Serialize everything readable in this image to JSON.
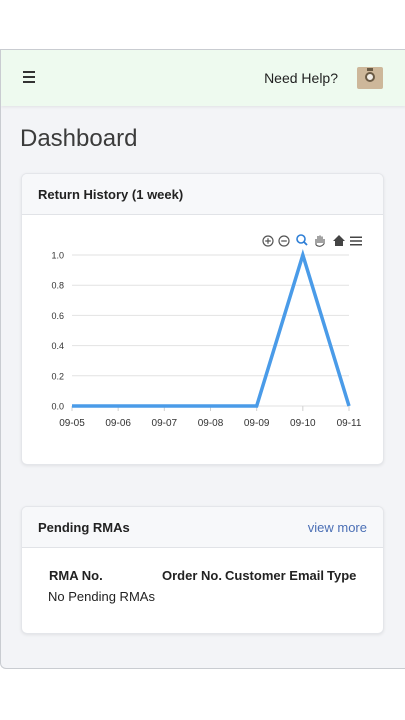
{
  "header": {
    "help_label": "Need Help?"
  },
  "page": {
    "title": "Dashboard"
  },
  "return_history": {
    "title": "Return History (1 week)",
    "toolbar_icons": [
      "zoom-in-icon",
      "zoom-out-icon",
      "zoom-select-icon",
      "pan-icon",
      "home-icon",
      "menu-icon"
    ]
  },
  "chart_data": {
    "type": "line",
    "title": "",
    "xlabel": "",
    "ylabel": "",
    "categories": [
      "09-05",
      "09-06",
      "09-07",
      "09-08",
      "09-09",
      "09-10",
      "09-11"
    ],
    "values": [
      0,
      0,
      0,
      0,
      0,
      1,
      0
    ],
    "ylim": [
      0,
      1
    ],
    "yticks": [
      "0.0",
      "0.2",
      "0.4",
      "0.6",
      "0.8",
      "1.0"
    ],
    "grid": true,
    "line_color": "#4a9be8"
  },
  "pending_rmas": {
    "title": "Pending RMAs",
    "view_more_label": "view more",
    "columns": [
      "RMA No.",
      "Order No.",
      "Customer Email",
      "Type"
    ],
    "empty_message": "No Pending RMAs"
  }
}
